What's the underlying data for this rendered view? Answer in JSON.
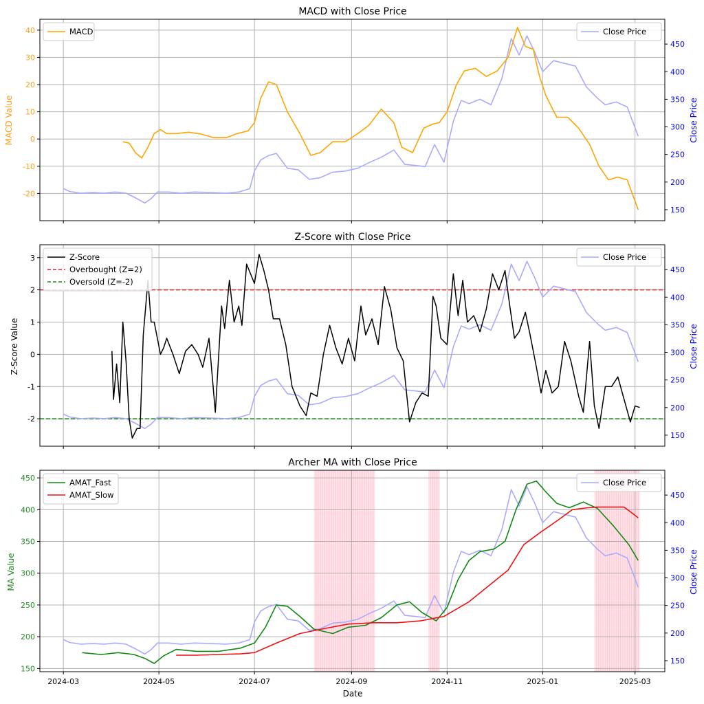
{
  "figure": {
    "xlabel": "Date",
    "x_ticks": [
      "2024-03",
      "2024-05",
      "2024-07",
      "2024-09",
      "2024-11",
      "2025-01",
      "2025-03"
    ],
    "x_tick_values": [
      "2024-03-01",
      "2024-05-01",
      "2024-07-01",
      "2024-09-01",
      "2024-11-01",
      "2025-01-01",
      "2025-03-01"
    ],
    "x_range": [
      "2024-02-15",
      "2025-03-20"
    ]
  },
  "chart_data": [
    {
      "type": "line",
      "title": "MACD with Close Price",
      "ylabel_left": "MACD Value",
      "ylabel_right": "Close Price",
      "ylim_left": [
        -30,
        44
      ],
      "ylim_right": [
        130,
        495
      ],
      "yticks_left": [
        -20,
        -10,
        0,
        10,
        20,
        30,
        40
      ],
      "yticks_right": [
        150,
        200,
        250,
        300,
        350,
        400,
        450
      ],
      "left_color": "#ff9f1a",
      "right_color": "#0000ee",
      "grid": true,
      "legend_left": {
        "position": "top-left",
        "items": [
          {
            "label": "MACD",
            "color": "#ffa500",
            "style": "solid"
          }
        ]
      },
      "legend_right": {
        "position": "top-right",
        "items": [
          {
            "label": "Close Price",
            "color": "#aaaaff",
            "style": "solid"
          }
        ]
      },
      "series": [
        {
          "name": "MACD",
          "axis": "left",
          "color": "#ffa500",
          "width": 1.6,
          "x": [
            "2024-04-08",
            "2024-04-12",
            "2024-04-16",
            "2024-04-20",
            "2024-04-24",
            "2024-04-28",
            "2024-05-02",
            "2024-05-06",
            "2024-05-12",
            "2024-05-20",
            "2024-05-28",
            "2024-06-05",
            "2024-06-13",
            "2024-06-20",
            "2024-06-27",
            "2024-07-01",
            "2024-07-05",
            "2024-07-10",
            "2024-07-15",
            "2024-07-22",
            "2024-07-30",
            "2024-08-06",
            "2024-08-12",
            "2024-08-20",
            "2024-08-28",
            "2024-09-05",
            "2024-09-12",
            "2024-09-20",
            "2024-09-28",
            "2024-10-03",
            "2024-10-10",
            "2024-10-17",
            "2024-10-23",
            "2024-10-27",
            "2024-11-01",
            "2024-11-07",
            "2024-11-12",
            "2024-11-19",
            "2024-11-26",
            "2024-12-03",
            "2024-12-10",
            "2024-12-16",
            "2024-12-21",
            "2024-12-26",
            "2024-12-30",
            "2025-01-03",
            "2025-01-10",
            "2025-01-17",
            "2025-01-24",
            "2025-01-31",
            "2025-02-06",
            "2025-02-12",
            "2025-02-18",
            "2025-02-24",
            "2025-03-03"
          ],
          "y": [
            -1,
            -1.5,
            -5,
            -7,
            -3,
            2,
            3.5,
            2,
            2,
            2.5,
            1.8,
            0.5,
            0.5,
            2,
            3,
            6,
            15,
            21,
            20,
            10,
            2,
            -6,
            -5,
            -1,
            -1,
            2,
            5,
            11,
            6,
            -3,
            -5,
            4,
            5.5,
            6,
            10,
            20,
            25,
            26,
            23,
            25,
            30,
            41,
            34,
            33,
            23,
            16,
            8,
            8,
            4,
            -2,
            -10,
            -15,
            -14,
            -15,
            -26
          ]
        },
        {
          "name": "Close Price",
          "axis": "right",
          "color": "#aaaaff",
          "width": 1.6,
          "x": [
            "2024-03-01",
            "2024-03-05",
            "2024-03-12",
            "2024-03-20",
            "2024-03-27",
            "2024-04-03",
            "2024-04-10",
            "2024-04-17",
            "2024-04-22",
            "2024-04-26",
            "2024-04-30",
            "2024-05-07",
            "2024-05-15",
            "2024-05-24",
            "2024-06-03",
            "2024-06-13",
            "2024-06-21",
            "2024-06-28",
            "2024-07-01",
            "2024-07-05",
            "2024-07-10",
            "2024-07-15",
            "2024-07-22",
            "2024-07-29",
            "2024-08-05",
            "2024-08-12",
            "2024-08-20",
            "2024-08-28",
            "2024-09-05",
            "2024-09-12",
            "2024-09-20",
            "2024-09-28",
            "2024-10-05",
            "2024-10-12",
            "2024-10-18",
            "2024-10-24",
            "2024-10-30",
            "2024-11-05",
            "2024-11-10",
            "2024-11-15",
            "2024-11-22",
            "2024-11-29",
            "2024-12-06",
            "2024-12-12",
            "2024-12-17",
            "2024-12-22",
            "2024-12-27",
            "2025-01-01",
            "2025-01-08",
            "2025-01-15",
            "2025-01-22",
            "2025-01-29",
            "2025-02-05",
            "2025-02-10",
            "2025-02-17",
            "2025-02-24",
            "2025-03-03"
          ],
          "y": [
            188,
            183,
            180,
            181,
            180,
            182,
            180,
            170,
            162,
            170,
            182,
            182,
            180,
            182,
            181,
            180,
            182,
            188,
            220,
            240,
            248,
            252,
            225,
            222,
            205,
            208,
            218,
            220,
            225,
            235,
            245,
            258,
            232,
            230,
            228,
            268,
            236,
            310,
            348,
            342,
            350,
            340,
            388,
            460,
            430,
            465,
            435,
            400,
            420,
            415,
            410,
            372,
            352,
            340,
            345,
            336,
            283
          ]
        }
      ]
    },
    {
      "type": "line",
      "title": "Z-Score with Close Price",
      "ylabel_left": "Z-Score Value",
      "ylabel_right": "Close Price",
      "ylim_left": [
        -2.85,
        3.4
      ],
      "ylim_right": [
        130,
        495
      ],
      "yticks_left": [
        -2,
        -1,
        0,
        1,
        2,
        3
      ],
      "yticks_right": [
        150,
        200,
        250,
        300,
        350,
        400,
        450
      ],
      "left_color": "#000000",
      "right_color": "#0000ee",
      "grid": true,
      "reference_lines": [
        {
          "y": 2,
          "label": "Overbought (Z=2)",
          "color": "#ee2222",
          "style": "dashed"
        },
        {
          "y": -2,
          "label": "Oversold (Z=-2)",
          "color": "#228822",
          "style": "dashed"
        }
      ],
      "legend_left": {
        "position": "top-left",
        "items": [
          {
            "label": "Z-Score",
            "color": "#000000",
            "style": "solid"
          },
          {
            "label": "Overbought (Z=2)",
            "color": "#ee2222",
            "style": "dashed"
          },
          {
            "label": "Oversold (Z=-2)",
            "color": "#228822",
            "style": "dashed"
          }
        ]
      },
      "legend_right": {
        "position": "top-right",
        "items": [
          {
            "label": "Close Price",
            "color": "#aaaaff",
            "style": "solid"
          }
        ]
      },
      "series": [
        {
          "name": "Z-Score",
          "axis": "left",
          "color": "#000000",
          "width": 1.5,
          "x": [
            "2024-04-01",
            "2024-04-02",
            "2024-04-04",
            "2024-04-06",
            "2024-04-08",
            "2024-04-10",
            "2024-04-12",
            "2024-04-14",
            "2024-04-17",
            "2024-04-19",
            "2024-04-21",
            "2024-04-24",
            "2024-04-26",
            "2024-04-28",
            "2024-04-30",
            "2024-05-02",
            "2024-05-04",
            "2024-05-06",
            "2024-05-10",
            "2024-05-14",
            "2024-05-18",
            "2024-05-22",
            "2024-05-26",
            "2024-05-29",
            "2024-06-02",
            "2024-06-06",
            "2024-06-10",
            "2024-06-12",
            "2024-06-15",
            "2024-06-18",
            "2024-06-21",
            "2024-06-23",
            "2024-06-26",
            "2024-07-01",
            "2024-07-04",
            "2024-07-07",
            "2024-07-10",
            "2024-07-13",
            "2024-07-17",
            "2024-07-21",
            "2024-07-25",
            "2024-07-30",
            "2024-08-03",
            "2024-08-06",
            "2024-08-10",
            "2024-08-14",
            "2024-08-18",
            "2024-08-22",
            "2024-08-26",
            "2024-08-30",
            "2024-09-03",
            "2024-09-07",
            "2024-09-10",
            "2024-09-14",
            "2024-09-18",
            "2024-09-22",
            "2024-09-26",
            "2024-09-30",
            "2024-10-04",
            "2024-10-08",
            "2024-10-12",
            "2024-10-16",
            "2024-10-20",
            "2024-10-23",
            "2024-10-25",
            "2024-10-28",
            "2024-11-01",
            "2024-11-05",
            "2024-11-08",
            "2024-11-11",
            "2024-11-14",
            "2024-11-18",
            "2024-11-22",
            "2024-11-26",
            "2024-11-30",
            "2024-12-04",
            "2024-12-08",
            "2024-12-11",
            "2024-12-14",
            "2024-12-17",
            "2024-12-21",
            "2024-12-24",
            "2024-12-28",
            "2024-12-31",
            "2025-01-03",
            "2025-01-07",
            "2025-01-11",
            "2025-01-15",
            "2025-01-19",
            "2025-01-24",
            "2025-01-27",
            "2025-01-31",
            "2025-02-03",
            "2025-02-06",
            "2025-02-10",
            "2025-02-14",
            "2025-02-18",
            "2025-02-22",
            "2025-02-26",
            "2025-03-01",
            "2025-03-04"
          ],
          "y": [
            0.1,
            -1.4,
            -0.3,
            -1.5,
            1.0,
            -0.2,
            -2.0,
            -2.6,
            -2.3,
            -2.3,
            0.6,
            2.3,
            1.0,
            1.0,
            0.5,
            0.0,
            0.2,
            0.5,
            0.0,
            -0.6,
            0.1,
            0.3,
            0.0,
            -0.4,
            0.5,
            -1.8,
            1.5,
            0.8,
            2.3,
            1.0,
            1.5,
            0.9,
            2.8,
            2.2,
            3.1,
            2.6,
            2.0,
            1.1,
            1.1,
            0.3,
            -1.0,
            -1.6,
            -1.9,
            -1.2,
            -1.3,
            0.0,
            0.9,
            0.2,
            -0.3,
            0.5,
            -0.2,
            1.5,
            0.6,
            1.1,
            0.3,
            2.1,
            1.4,
            0.2,
            -0.2,
            -2.1,
            -1.5,
            -1.2,
            -1.3,
            1.8,
            1.5,
            0.5,
            0.3,
            2.5,
            1.2,
            2.3,
            1.0,
            1.2,
            0.7,
            1.4,
            2.5,
            2.0,
            2.6,
            1.5,
            0.5,
            0.7,
            1.3,
            0.6,
            -0.4,
            -1.2,
            -0.5,
            -1.2,
            -1.0,
            0.4,
            -0.2,
            -1.3,
            -1.8,
            0.4,
            -1.6,
            -2.3,
            -1.0,
            -1.0,
            -0.7,
            -1.4,
            -2.1,
            -1.6,
            -1.65
          ]
        },
        {
          "name": "Close Price",
          "axis": "right",
          "color": "#aaaaff",
          "width": 1.6,
          "ref": "shared_close"
        }
      ]
    },
    {
      "type": "line",
      "title": "Archer MA with Close Price",
      "ylabel_left": "MA Value",
      "ylabel_right": "Close Price",
      "ylim_left": [
        145,
        462
      ],
      "ylim_right": [
        130,
        495
      ],
      "yticks_left": [
        150,
        200,
        250,
        300,
        350,
        400,
        450
      ],
      "yticks_right": [
        150,
        200,
        250,
        300,
        350,
        400,
        450
      ],
      "left_color": "#228822",
      "right_color": "#0000ee",
      "grid": true,
      "shaded_regions": {
        "color": "#ffc0cb",
        "ranges": [
          [
            "2024-08-08",
            "2024-09-16"
          ],
          [
            "2024-10-20",
            "2024-10-27"
          ],
          [
            "2025-02-03",
            "2025-03-04"
          ]
        ]
      },
      "legend_left": {
        "position": "top-left",
        "items": [
          {
            "label": "AMAT_Fast",
            "color": "#118811",
            "style": "solid"
          },
          {
            "label": "AMAT_Slow",
            "color": "#ee1111",
            "style": "solid"
          }
        ]
      },
      "legend_right": {
        "position": "top-right",
        "items": [
          {
            "label": "Close Price",
            "color": "#aaaaff",
            "style": "solid"
          }
        ]
      },
      "series": [
        {
          "name": "AMAT_Fast",
          "axis": "left",
          "color": "#118811",
          "width": 1.6,
          "x": [
            "2024-03-13",
            "2024-03-25",
            "2024-04-05",
            "2024-04-15",
            "2024-04-22",
            "2024-04-28",
            "2024-05-04",
            "2024-05-12",
            "2024-05-25",
            "2024-06-08",
            "2024-06-22",
            "2024-07-01",
            "2024-07-08",
            "2024-07-15",
            "2024-07-22",
            "2024-07-30",
            "2024-08-08",
            "2024-08-20",
            "2024-08-30",
            "2024-09-10",
            "2024-09-20",
            "2024-09-30",
            "2024-10-08",
            "2024-10-16",
            "2024-10-25",
            "2024-11-01",
            "2024-11-08",
            "2024-11-15",
            "2024-11-22",
            "2024-12-01",
            "2024-12-08",
            "2024-12-15",
            "2024-12-22",
            "2024-12-28",
            "2025-01-03",
            "2025-01-10",
            "2025-01-18",
            "2025-01-27",
            "2025-02-05",
            "2025-02-15",
            "2025-02-25",
            "2025-03-03"
          ],
          "y": [
            175,
            172,
            175,
            172,
            166,
            158,
            170,
            180,
            177,
            177,
            182,
            190,
            215,
            250,
            248,
            232,
            212,
            205,
            215,
            218,
            230,
            250,
            255,
            238,
            225,
            246,
            290,
            320,
            334,
            338,
            350,
            400,
            440,
            445,
            428,
            410,
            403,
            412,
            402,
            375,
            345,
            320
          ]
        },
        {
          "name": "AMAT_Slow",
          "axis": "left",
          "color": "#ee1111",
          "width": 1.6,
          "x": [
            "2024-05-12",
            "2024-05-25",
            "2024-06-08",
            "2024-06-22",
            "2024-07-01",
            "2024-07-15",
            "2024-07-30",
            "2024-08-15",
            "2024-08-30",
            "2024-09-15",
            "2024-09-30",
            "2024-10-15",
            "2024-10-30",
            "2024-11-15",
            "2024-11-30",
            "2024-12-10",
            "2024-12-20",
            "2024-12-31",
            "2025-01-10",
            "2025-01-20",
            "2025-01-30",
            "2025-02-05",
            "2025-02-15",
            "2025-02-22",
            "2025-02-28",
            "2025-03-03"
          ],
          "y": [
            171,
            171,
            172,
            173,
            175,
            190,
            205,
            213,
            220,
            222,
            222,
            225,
            232,
            255,
            285,
            305,
            345,
            365,
            382,
            400,
            403,
            404,
            404,
            404,
            393,
            387
          ]
        },
        {
          "name": "Close Price",
          "axis": "right",
          "color": "#aaaaff",
          "width": 1.6,
          "ref": "shared_close"
        }
      ]
    }
  ]
}
